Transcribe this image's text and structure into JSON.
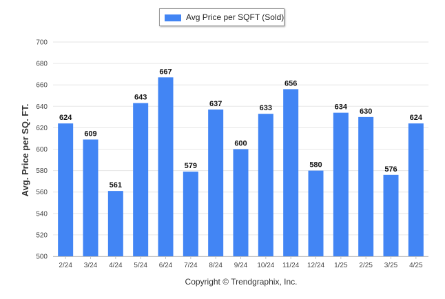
{
  "chart_data": {
    "type": "bar",
    "categories": [
      "2/24",
      "3/24",
      "4/24",
      "5/24",
      "6/24",
      "7/24",
      "8/24",
      "9/24",
      "10/24",
      "11/24",
      "12/24",
      "1/25",
      "2/25",
      "3/25",
      "4/25"
    ],
    "series": [
      {
        "name": "Avg Price per SQFT (Sold)",
        "values": [
          624,
          609,
          561,
          643,
          667,
          579,
          637,
          600,
          633,
          656,
          580,
          634,
          630,
          576,
          624
        ]
      }
    ],
    "ylabel": "Avg. Price per SQ. FT.",
    "xlabel": "",
    "ylim": [
      500,
      700
    ],
    "yticks": [
      500,
      520,
      540,
      560,
      580,
      600,
      620,
      640,
      660,
      680,
      700
    ],
    "grid": true,
    "legend_position": "top-center",
    "data_labels": true,
    "colors": {
      "bar": "#4285f4",
      "grid": "#e6e6e6"
    }
  },
  "footer": {
    "credit": "Copyright © Trendgraphix, Inc."
  }
}
